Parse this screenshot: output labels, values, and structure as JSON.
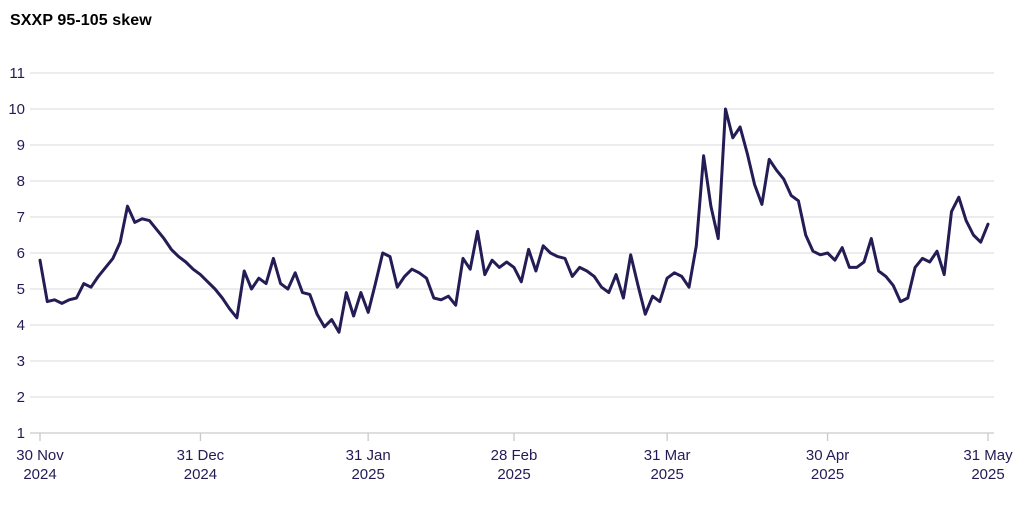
{
  "page": {
    "background_color": "#ffffff"
  },
  "chart_data": {
    "type": "line",
    "title": "SXXP 95-105 skew",
    "xlabel": "",
    "ylabel": "",
    "ylim": [
      1,
      11
    ],
    "y_ticks": [
      1,
      2,
      3,
      4,
      5,
      6,
      7,
      8,
      9,
      10,
      11
    ],
    "grid": "horizontal",
    "legend_position": "none",
    "x_ticks": [
      {
        "index": 0,
        "label_line1": "30 Nov",
        "label_line2": "2024"
      },
      {
        "index": 22,
        "label_line1": "31 Dec",
        "label_line2": "2024"
      },
      {
        "index": 45,
        "label_line1": "31 Jan",
        "label_line2": "2025"
      },
      {
        "index": 65,
        "label_line1": "28 Feb",
        "label_line2": "2025"
      },
      {
        "index": 86,
        "label_line1": "31 Mar",
        "label_line2": "2025"
      },
      {
        "index": 108,
        "label_line1": "30 Apr",
        "label_line2": "2025"
      },
      {
        "index": 130,
        "label_line1": "31 May",
        "label_line2": "2025"
      }
    ],
    "series": [
      {
        "name": "SXXP 95-105 skew",
        "frequency": "daily (business days)",
        "values": [
          5.8,
          4.65,
          4.7,
          4.6,
          4.7,
          4.75,
          5.15,
          5.05,
          5.35,
          5.6,
          5.85,
          6.3,
          7.3,
          6.85,
          6.95,
          6.9,
          6.65,
          6.4,
          6.1,
          5.9,
          5.75,
          5.55,
          5.4,
          5.2,
          5.0,
          4.75,
          4.45,
          4.2,
          5.5,
          5.0,
          5.3,
          5.15,
          5.85,
          5.15,
          5.0,
          5.45,
          4.9,
          4.85,
          4.3,
          3.95,
          4.15,
          3.8,
          4.9,
          4.25,
          4.9,
          4.35,
          5.15,
          6.0,
          5.9,
          5.05,
          5.35,
          5.55,
          5.45,
          5.3,
          4.75,
          4.7,
          4.8,
          4.55,
          5.85,
          5.55,
          6.6,
          5.4,
          5.8,
          5.6,
          5.75,
          5.6,
          5.2,
          6.1,
          5.5,
          6.2,
          6.0,
          5.9,
          5.85,
          5.35,
          5.6,
          5.5,
          5.35,
          5.05,
          4.9,
          5.4,
          4.75,
          5.95,
          5.1,
          4.3,
          4.8,
          4.65,
          5.3,
          5.45,
          5.35,
          5.05,
          6.2,
          8.7,
          7.3,
          6.4,
          10.0,
          9.2,
          9.5,
          8.75,
          7.9,
          7.35,
          8.6,
          8.3,
          8.05,
          7.6,
          7.45,
          6.5,
          6.05,
          5.95,
          6.0,
          5.8,
          6.15,
          5.6,
          5.6,
          5.75,
          6.4,
          5.5,
          5.35,
          5.1,
          4.65,
          4.75,
          5.6,
          5.85,
          5.75,
          6.05,
          5.4,
          7.15,
          7.55,
          6.9,
          6.5,
          6.3,
          6.8
        ]
      }
    ],
    "colors": {
      "line": "#241d55",
      "text": "#221b54",
      "gridline": "#e1e1e1",
      "axis_line": "#c9c9c9"
    }
  }
}
